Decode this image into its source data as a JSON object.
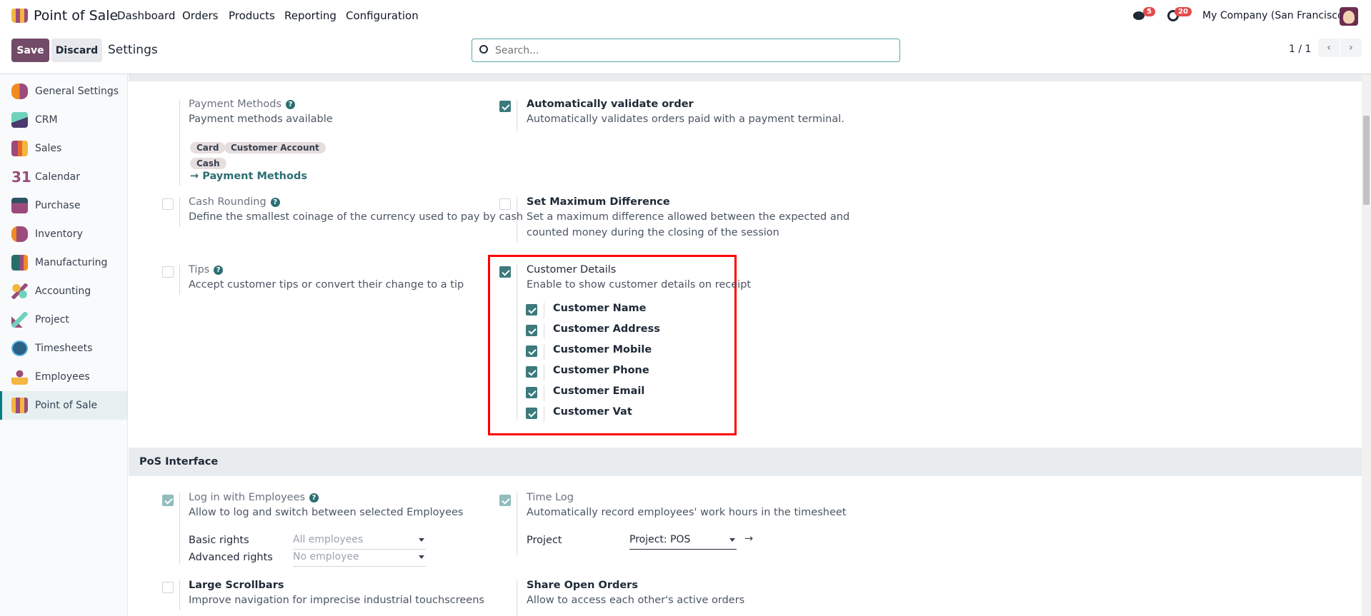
{
  "topnav": {
    "app": "Point of Sale",
    "menu": [
      "Dashboard",
      "Orders",
      "Products",
      "Reporting",
      "Configuration"
    ],
    "messages_count": "5",
    "activities_count": "20",
    "company": "My Company (San Francisco)"
  },
  "control": {
    "save": "Save",
    "discard": "Discard",
    "breadcrumb": "Settings",
    "search_placeholder": "Search...",
    "pager": "1 / 1"
  },
  "sidebar": {
    "items": [
      {
        "label": "General Settings",
        "icon": "general-settings-icon"
      },
      {
        "label": "CRM",
        "icon": "crm-icon"
      },
      {
        "label": "Sales",
        "icon": "sales-icon"
      },
      {
        "label": "Calendar",
        "icon": "calendar-icon"
      },
      {
        "label": "Purchase",
        "icon": "purchase-icon"
      },
      {
        "label": "Inventory",
        "icon": "inventory-icon"
      },
      {
        "label": "Manufacturing",
        "icon": "manufacturing-icon"
      },
      {
        "label": "Accounting",
        "icon": "accounting-icon"
      },
      {
        "label": "Project",
        "icon": "project-icon"
      },
      {
        "label": "Timesheets",
        "icon": "timesheets-icon"
      },
      {
        "label": "Employees",
        "icon": "employees-icon"
      },
      {
        "label": "Point of Sale",
        "icon": "pos-icon",
        "active": true
      }
    ]
  },
  "payment": {
    "payment_methods": {
      "title": "Payment Methods",
      "desc": "Payment methods available",
      "tags": [
        "Card",
        "Customer Account",
        "Cash"
      ],
      "link": "Payment Methods"
    },
    "auto_validate": {
      "title": "Automatically validate order",
      "desc": "Automatically validates orders paid with a payment terminal.",
      "checked": true
    },
    "cash_rounding": {
      "title": "Cash Rounding",
      "desc": "Define the smallest coinage of the currency used to pay by cash",
      "checked": false
    },
    "max_diff": {
      "title": "Set Maximum Difference",
      "desc1": "Set a maximum difference allowed between the expected and",
      "desc2": "counted money during the closing of the session",
      "checked": false
    },
    "tips": {
      "title": "Tips",
      "desc": "Accept customer tips or convert their change to a tip",
      "checked": false
    },
    "customer_details": {
      "title": "Customer Details",
      "desc": "Enable to show customer details on receipt",
      "checked": true,
      "options": [
        "Customer Name",
        "Customer Address",
        "Customer Mobile",
        "Customer Phone",
        "Customer Email",
        "Customer Vat"
      ]
    }
  },
  "pos_interface": {
    "header": "PoS Interface",
    "login": {
      "title": "Log in with Employees",
      "desc": "Allow to log and switch between selected Employees",
      "basic_label": "Basic rights",
      "basic_value": "All employees",
      "adv_label": "Advanced rights",
      "adv_value": "No employee",
      "checked": true
    },
    "time_log": {
      "title": "Time Log",
      "desc": "Automatically record employees' work hours in the timesheet",
      "project_label": "Project",
      "project_value": "Project: POS",
      "checked": true
    },
    "large_scrollbars": {
      "title": "Large Scrollbars",
      "desc": "Improve navigation for imprecise industrial touchscreens",
      "checked": false
    },
    "share_orders": {
      "title": "Share Open Orders",
      "desc": "Allow to access each other's active orders"
    }
  },
  "colors": {
    "primary": "#714b67",
    "accent": "#017e84",
    "highlight": "#ff0000"
  }
}
